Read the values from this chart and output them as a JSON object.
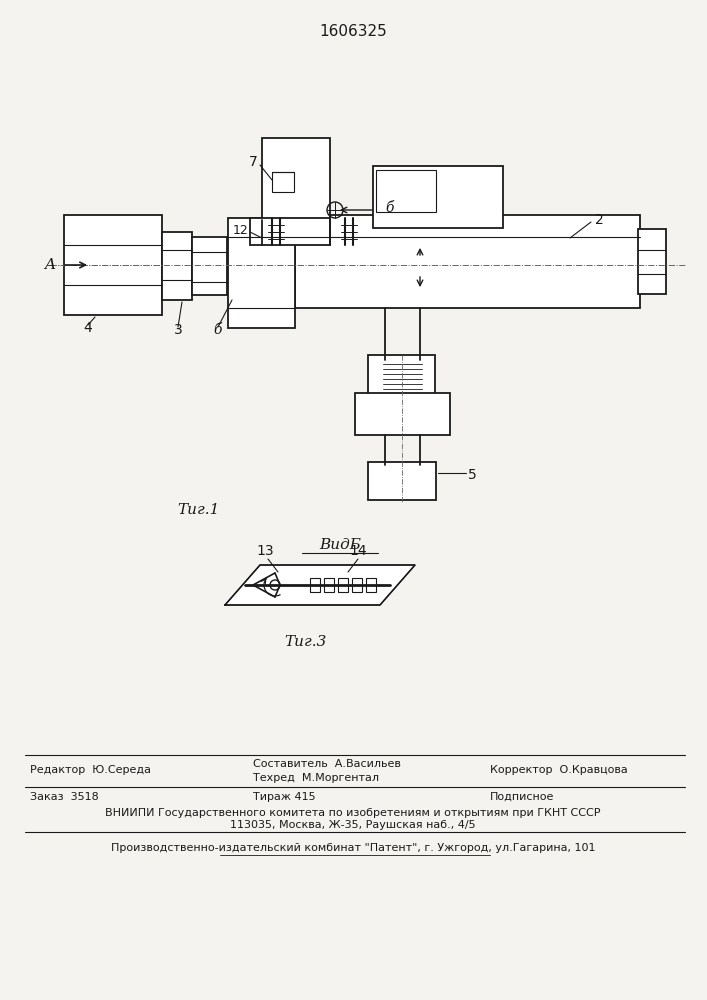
{
  "title": "1606325",
  "bg_color": "#f5f3ef",
  "draw_bg": "#ffffff",
  "line_color": "#1a1a1a",
  "fig1_caption": "Τиг.1",
  "fig3_caption": "Τиг.3",
  "vid_b_label": "ВидБ",
  "label_A": "A",
  "label_2": "2",
  "label_3": "3",
  "label_4": "4",
  "label_5": "5",
  "label_6": "б",
  "label_7": "7",
  "label_12": "12",
  "label_13": "13",
  "label_14": "14",
  "label_b": "б",
  "footer_editor": "Редактор  Ю.Середа",
  "footer_comp": "Составитель  А.Васильев",
  "footer_tech": "Техред  М.Моргентал",
  "footer_corr": "Корректор  О.Кравцова",
  "footer_order": "Заказ  3518",
  "footer_tirazh": "Тираж 415",
  "footer_podp": "Подписное",
  "footer_vniip": "ВНИИПИ Государственного комитета по изобретениям и открытиям при ГКНТ СССР",
  "footer_addr": "113035, Москва, Ж-35, Раушская наб., 4/5",
  "footer_prod": "Производственно-издательский комбинат \"Патент\", г. Ужгород, ул.Гагарина, 101"
}
